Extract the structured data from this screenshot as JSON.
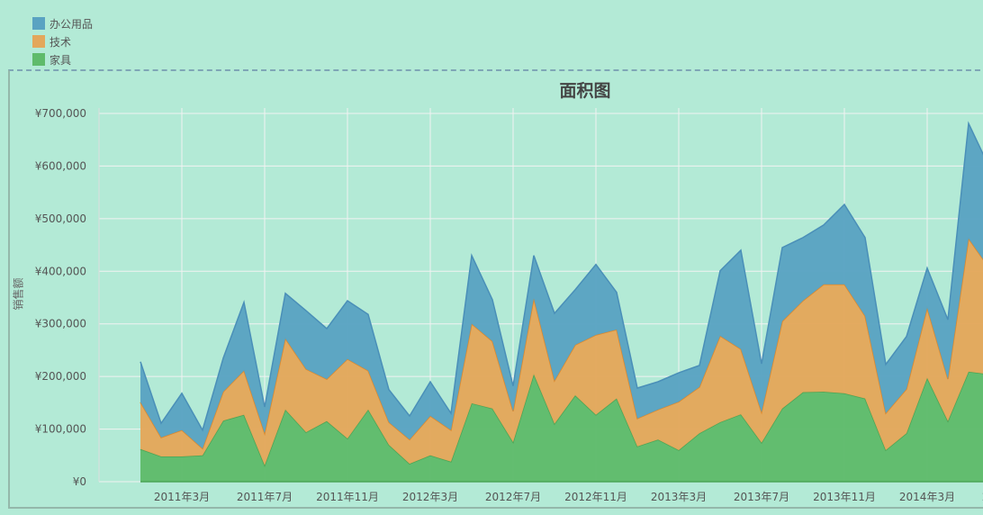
{
  "chart_data": {
    "type": "area",
    "stacked": true,
    "title": "面积图",
    "xlabel": "",
    "ylabel": "销售额",
    "ylim": [
      0,
      700000
    ],
    "y_ticks": [
      "¥0",
      "¥100,000",
      "¥200,000",
      "¥300,000",
      "¥400,000",
      "¥500,000",
      "¥600,000",
      "¥700,000"
    ],
    "x_tick_labels": [
      "2011年3月",
      "2011年7月",
      "2011年11月",
      "2012年3月",
      "2012年7月",
      "2012年11月",
      "2013年3月",
      "2013年7月",
      "2013年11月",
      "2014年3月",
      "2014年7月"
    ],
    "x": [
      "2011-01",
      "2011-02",
      "2011-03",
      "2011-04",
      "2011-05",
      "2011-06",
      "2011-07",
      "2011-08",
      "2011-09",
      "2011-10",
      "2011-11",
      "2011-12",
      "2012-01",
      "2012-02",
      "2012-03",
      "2012-04",
      "2012-05",
      "2012-06",
      "2012-07",
      "2012-08",
      "2012-09",
      "2012-10",
      "2012-11",
      "2012-12",
      "2013-01",
      "2013-02",
      "2013-03",
      "2013-04",
      "2013-05",
      "2013-06",
      "2013-07",
      "2013-08",
      "2013-09",
      "2013-10",
      "2013-11",
      "2013-12",
      "2014-01",
      "2014-02",
      "2014-03",
      "2014-04",
      "2014-05",
      "2014-06"
    ],
    "legend_position": "top-left",
    "grid": true,
    "series": [
      {
        "name": "家具",
        "color": "#5fbb6b",
        "stroke": "#4aa556",
        "values": [
          62000,
          48000,
          48000,
          50000,
          116000,
          127000,
          31000,
          137000,
          94000,
          115000,
          82000,
          137000,
          70000,
          34000,
          50000,
          38000,
          149000,
          139000,
          75000,
          204000,
          110000,
          164000,
          127000,
          158000,
          67000,
          80000,
          60000,
          92000,
          113000,
          128000,
          74000,
          139000,
          170000,
          171000,
          168000,
          158000,
          60000,
          92000,
          197000,
          115000,
          209000,
          204000
        ]
      },
      {
        "name": "技术",
        "color": "#e3a75b",
        "stroke": "#e0892a",
        "values": [
          89000,
          36000,
          50000,
          13000,
          55000,
          84000,
          61000,
          135000,
          120000,
          80000,
          151000,
          74000,
          43000,
          46000,
          75000,
          60000,
          151000,
          128000,
          59000,
          144000,
          82000,
          96000,
          152000,
          131000,
          53000,
          57000,
          92000,
          88000,
          164000,
          124000,
          58000,
          166000,
          174000,
          204000,
          207000,
          157000,
          70000,
          84000,
          133000,
          80000,
          253000,
          202000
        ]
      },
      {
        "name": "办公用品",
        "color": "#5aa3c2",
        "stroke": "#4a8fb8",
        "values": [
          77000,
          27000,
          70000,
          35000,
          64000,
          130000,
          50000,
          86000,
          111000,
          96000,
          111000,
          107000,
          62000,
          45000,
          65000,
          32000,
          130000,
          79000,
          48000,
          82000,
          128000,
          105000,
          134000,
          71000,
          58000,
          53000,
          55000,
          41000,
          124000,
          188000,
          92000,
          140000,
          120000,
          113000,
          152000,
          149000,
          93000,
          100000,
          76000,
          113000,
          219000,
          192000
        ]
      }
    ]
  }
}
